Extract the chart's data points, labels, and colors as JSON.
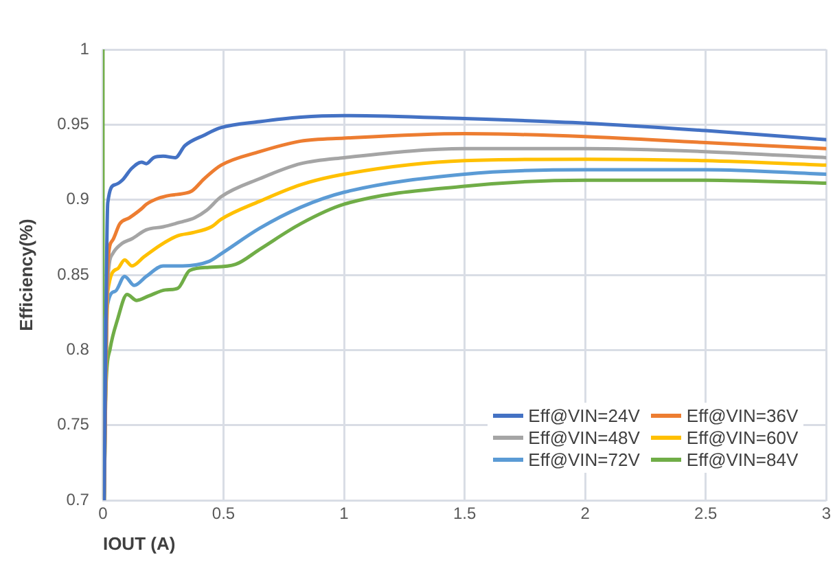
{
  "chart_data": {
    "type": "line",
    "xlabel": "IOUT (A)",
    "ylabel": "Efficiency(%)",
    "xlim": [
      0,
      3
    ],
    "xticks": [
      0,
      0.5,
      1,
      1.5,
      2,
      2.5,
      3
    ],
    "ylim": [
      0.7,
      1
    ],
    "yticks": [
      0.7,
      0.75,
      0.8,
      0.85,
      0.9,
      0.95,
      1
    ],
    "grid": true,
    "legend": "bottom right",
    "marker": "none",
    "line_style": "solid",
    "series": [
      {
        "name": "Eff@VIN=24V",
        "color": "#4472c4",
        "x": [
          0.005,
          0.02,
          0.05,
          0.08,
          0.12,
          0.16,
          0.18,
          0.21,
          0.25,
          0.3,
          0.34,
          0.42,
          0.49,
          0.65,
          0.82,
          1,
          1.5,
          2,
          2.5,
          3
        ],
        "values": [
          0.7,
          0.898,
          0.91,
          0.913,
          0.921,
          0.925,
          0.924,
          0.928,
          0.929,
          0.928,
          0.936,
          0.943,
          0.948,
          0.952,
          0.955,
          0.956,
          0.954,
          0.951,
          0.946,
          0.94
        ]
      },
      {
        "name": "Eff@VIN=36V",
        "color": "#ed7d31",
        "x": [
          0.005,
          0.02,
          0.04,
          0.07,
          0.11,
          0.16,
          0.18,
          0.23,
          0.28,
          0.33,
          0.37,
          0.42,
          0.49,
          0.65,
          0.82,
          1,
          1.5,
          2,
          2.5,
          3
        ],
        "values": [
          0.7,
          0.857,
          0.873,
          0.884,
          0.888,
          0.894,
          0.897,
          0.901,
          0.903,
          0.904,
          0.906,
          0.914,
          0.923,
          0.932,
          0.939,
          0.941,
          0.944,
          0.942,
          0.938,
          0.934
        ]
      },
      {
        "name": "Eff@VIN=48V",
        "color": "#a5a5a5",
        "x": [
          0.005,
          0.02,
          0.04,
          0.08,
          0.12,
          0.18,
          0.25,
          0.32,
          0.38,
          0.43,
          0.49,
          0.65,
          0.82,
          1,
          1.5,
          2,
          2.5,
          3
        ],
        "values": [
          0.7,
          0.845,
          0.864,
          0.871,
          0.874,
          0.88,
          0.882,
          0.885,
          0.888,
          0.893,
          0.902,
          0.914,
          0.924,
          0.928,
          0.934,
          0.934,
          0.932,
          0.928
        ]
      },
      {
        "name": "Eff@VIN=60V",
        "color": "#ffc000",
        "x": [
          0.005,
          0.02,
          0.06,
          0.09,
          0.12,
          0.17,
          0.24,
          0.31,
          0.37,
          0.45,
          0.49,
          0.65,
          0.82,
          1,
          1.5,
          2,
          2.5,
          3
        ],
        "values": [
          0.7,
          0.839,
          0.854,
          0.86,
          0.856,
          0.862,
          0.87,
          0.876,
          0.878,
          0.882,
          0.887,
          0.899,
          0.91,
          0.917,
          0.926,
          0.927,
          0.926,
          0.923
        ]
      },
      {
        "name": "Eff@VIN=72V",
        "color": "#5b9bd5",
        "x": [
          0.005,
          0.01,
          0.05,
          0.09,
          0.13,
          0.18,
          0.25,
          0.33,
          0.44,
          0.49,
          0.65,
          0.82,
          1,
          1.5,
          2,
          2.5,
          3
        ],
        "values": [
          0.7,
          0.82,
          0.839,
          0.849,
          0.843,
          0.849,
          0.856,
          0.856,
          0.859,
          0.864,
          0.881,
          0.895,
          0.905,
          0.917,
          0.92,
          0.92,
          0.917
        ]
      },
      {
        "name": "Eff@VIN=84V",
        "color": "#70ad47",
        "x": [
          0,
          0,
          0.005,
          0.01,
          0.03,
          0.06,
          0.1,
          0.14,
          0.19,
          0.26,
          0.31,
          0.36,
          0.44,
          0.55,
          0.65,
          0.82,
          1,
          1.5,
          2,
          2.5,
          3
        ],
        "values": [
          1,
          0.7,
          0.7,
          0.764,
          0.801,
          0.82,
          0.837,
          0.833,
          0.836,
          0.84,
          0.841,
          0.853,
          0.855,
          0.857,
          0.867,
          0.884,
          0.897,
          0.909,
          0.913,
          0.913,
          0.911
        ]
      }
    ]
  }
}
